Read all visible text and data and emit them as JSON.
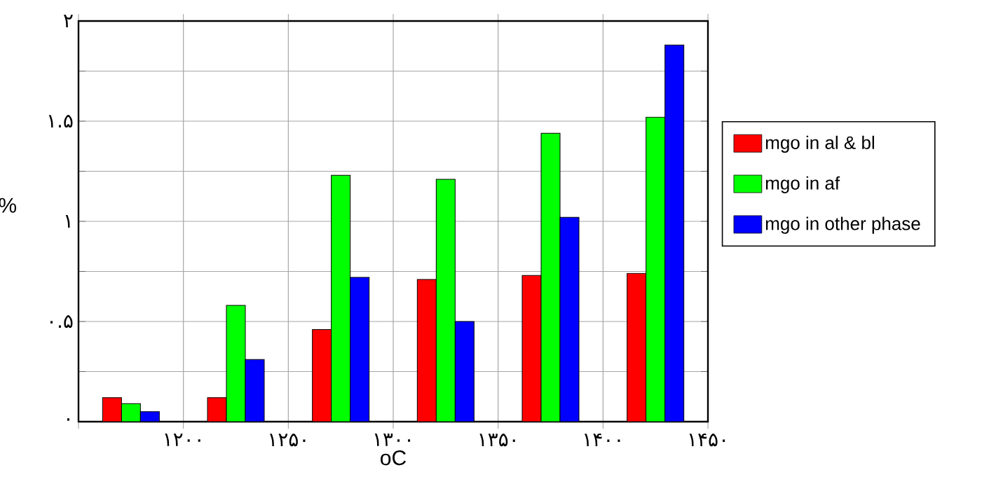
{
  "chart_data": {
    "type": "bar",
    "xlabel": "oC",
    "ylabel": "%",
    "x": [
      1175,
      1225,
      1275,
      1325,
      1375,
      1425
    ],
    "xlim": [
      1150,
      1450
    ],
    "xticks": [
      {
        "value": 1150,
        "label": null
      },
      {
        "value": 1200,
        "label": "۱۲۰۰"
      },
      {
        "value": 1250,
        "label": "۱۲۵۰"
      },
      {
        "value": 1300,
        "label": "۱۳۰۰"
      },
      {
        "value": 1350,
        "label": "۱۳۵۰"
      },
      {
        "value": 1400,
        "label": "۱۴۰۰"
      },
      {
        "value": 1450,
        "label": "۱۴۵۰"
      }
    ],
    "series": [
      {
        "name": "mgo in al & bl",
        "color": "#ff0000",
        "values": [
          0.12,
          0.12,
          0.46,
          0.71,
          0.73,
          0.74
        ]
      },
      {
        "name": "mgo in af",
        "color": "#00ff00",
        "values": [
          0.09,
          0.58,
          1.23,
          1.21,
          1.44,
          1.52
        ]
      },
      {
        "name": "mgo in other phase",
        "color": "#0000ff",
        "values": [
          0.05,
          0.31,
          0.72,
          0.5,
          1.02,
          1.88
        ]
      }
    ],
    "ylim": [
      0,
      2
    ],
    "yticks": [
      {
        "value": 0,
        "label": "۰"
      },
      {
        "value": 0.25,
        "label": null
      },
      {
        "value": 0.5,
        "label": "۰.۵"
      },
      {
        "value": 0.75,
        "label": null
      },
      {
        "value": 1,
        "label": "۱"
      },
      {
        "value": 1.25,
        "label": null
      },
      {
        "value": 1.5,
        "label": "۱.۵"
      },
      {
        "value": 1.75,
        "label": null
      },
      {
        "value": 2,
        "label": "۲"
      }
    ],
    "grid": true,
    "legend": "right"
  }
}
